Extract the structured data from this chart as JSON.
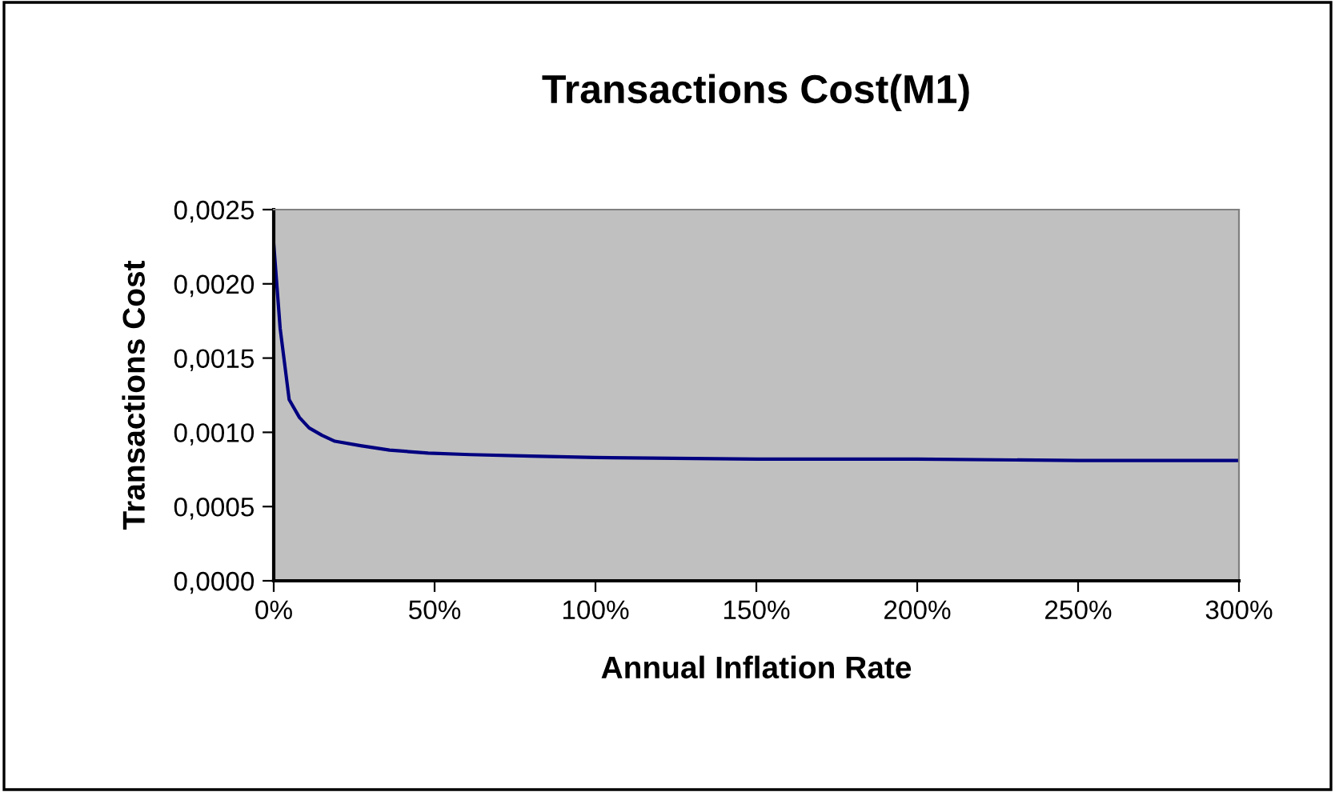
{
  "chart_data": {
    "type": "line",
    "title": "Transactions Cost(M1)",
    "xlabel": "Annual Inflation Rate",
    "ylabel": "Transactions Cost",
    "x": [
      0,
      2,
      4.8,
      8,
      11,
      15,
      19,
      27,
      36,
      48,
      61,
      80,
      100,
      150,
      200,
      250,
      300
    ],
    "series": [
      {
        "color": "#000080",
        "values": [
          0.00227,
          0.0017,
          0.00122,
          0.0011,
          0.00103,
          0.00098,
          0.00094,
          0.00091,
          0.00088,
          0.00086,
          0.00085,
          0.00084,
          0.00083,
          0.00082,
          0.00082,
          0.00081,
          0.00081
        ]
      }
    ],
    "xlim": [
      0,
      300
    ],
    "ylim": [
      0,
      0.0025
    ],
    "xticks": [
      {
        "value": 0,
        "label": "0%"
      },
      {
        "value": 50,
        "label": "50%"
      },
      {
        "value": 100,
        "label": "100%"
      },
      {
        "value": 150,
        "label": "150%"
      },
      {
        "value": 200,
        "label": "200%"
      },
      {
        "value": 250,
        "label": "250%"
      },
      {
        "value": 300,
        "label": "300%"
      }
    ],
    "yticks": [
      {
        "value": 0,
        "label": "0,0000"
      },
      {
        "value": 0.0005,
        "label": "0,0005"
      },
      {
        "value": 0.001,
        "label": "0,0010"
      },
      {
        "value": 0.0015,
        "label": "0,0015"
      },
      {
        "value": 0.002,
        "label": "0,0020"
      },
      {
        "value": 0.0025,
        "label": "0,0025"
      }
    ],
    "grid": false,
    "legend": false,
    "marker": "none",
    "line_style": "solid"
  }
}
